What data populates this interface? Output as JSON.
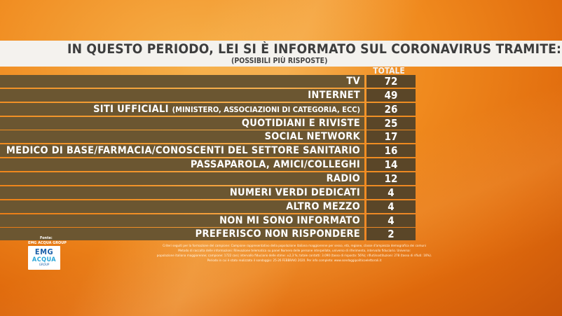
{
  "title": "IN QUESTO PERIODO, LEI SI È INFORMATO SUL CORONAVIRUS TRAMITE:",
  "subtitle": "(POSSIBILI PIÙ RISPOSTE)",
  "column_header": "TOTALE",
  "chart_data": {
    "type": "table",
    "title": "IN QUESTO PERIODO, LEI SI È INFORMATO SUL CORONAVIRUS TRAMITE:",
    "subtitle": "(POSSIBILI PIÙ RISPOSTE)",
    "columns": [
      "TOTALE"
    ],
    "rows": [
      {
        "label": "TV",
        "label_small": "",
        "value": 72
      },
      {
        "label": "INTERNET",
        "label_small": "",
        "value": 49
      },
      {
        "label": "SITI UFFICIALI",
        "label_small": "(MINISTERO, ASSOCIAZIONI DI CATEGORIA, ECC)",
        "value": 26
      },
      {
        "label": "QUOTIDIANI E RIVISTE",
        "label_small": "",
        "value": 25
      },
      {
        "label": "SOCIAL NETWORK",
        "label_small": "",
        "value": 17
      },
      {
        "label": "MEDICO DI BASE/FARMACIA/CONOSCENTI DEL SETTORE SANITARIO",
        "label_small": "",
        "value": 16
      },
      {
        "label": "PASSAPAROLA, AMICI/COLLEGHI",
        "label_small": "",
        "value": 14
      },
      {
        "label": "RADIO",
        "label_small": "",
        "value": 12
      },
      {
        "label": "NUMERI VERDI DEDICATI",
        "label_small": "",
        "value": 4
      },
      {
        "label": "ALTRO MEZZO",
        "label_small": "",
        "value": 4
      },
      {
        "label": "NON MI SONO INFORMATO",
        "label_small": "",
        "value": 4
      },
      {
        "label": "PREFERISCO NON RISPONDERE",
        "label_small": "",
        "value": 2
      }
    ]
  },
  "footer": {
    "source_label": "Fonte:",
    "source_name": "EMG ACQUA GROUP",
    "logo_emg": "EMG",
    "logo_acqua": "ACQUA",
    "logo_group": "GROUP",
    "notes": [
      "Criteri seguiti per la formazione del campione: Campione rappresentativo della popolazione italiana maggiorenne per sesso, età, regione, classe d'ampiezza demografica dei comuni",
      "Metodo di raccolta delle informazioni: Rilevazione telematica su panel Numero delle persone interpellate, universo di riferimento, intervallo fiduciario. Universo:",
      "popolazione italiana maggiorenne; campione: 1722 casi; intervallo fiduciario delle stime: ±2,3 %; totale contatti: 3.090 (tasso di risposta: 56%); rifiuti/sostituzioni: 278 (tasso di rifiuti: 16%).",
      "Periodo in cui è stato realizzato il sondaggio: 25-26 FEBBRAIO 2020. Per info completo: www.sondaggipoliticoelettorali.it"
    ]
  },
  "colors": {
    "background": "#f08a1e",
    "title_bar": "#f4f2ee",
    "row_label": "#6b5631",
    "row_value": "#5a4628",
    "logo_blue": "#1b5fa8",
    "logo_cyan": "#2aa6d8"
  }
}
